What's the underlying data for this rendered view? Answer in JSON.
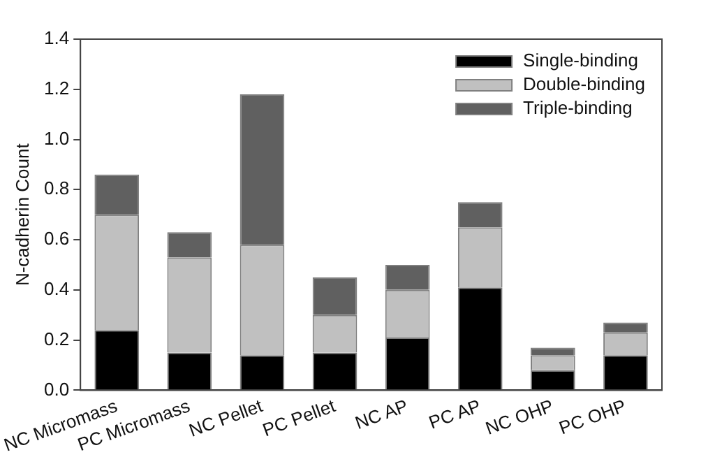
{
  "chart_data": {
    "type": "bar",
    "stacked": true,
    "ylabel": "N-cadherin Count",
    "categories": [
      "NC Micromass",
      "PC Micromass",
      "NC Pellet",
      "PC Pellet",
      "NC AP",
      "PC AP",
      "NC OHP",
      "PC OHP"
    ],
    "series": [
      {
        "name": "Single-binding",
        "color": "#000000",
        "values": [
          0.24,
          0.15,
          0.14,
          0.15,
          0.21,
          0.41,
          0.08,
          0.14
        ]
      },
      {
        "name": "Double-binding",
        "color": "#c0c0c0",
        "values": [
          0.46,
          0.38,
          0.44,
          0.15,
          0.19,
          0.24,
          0.06,
          0.09
        ]
      },
      {
        "name": "Triple-binding",
        "color": "#606060",
        "values": [
          0.16,
          0.1,
          0.6,
          0.15,
          0.1,
          0.1,
          0.03,
          0.04
        ]
      }
    ],
    "ylim": [
      0,
      1.4
    ],
    "yticks": [
      {
        "value": 0,
        "label": "0.0"
      },
      0.2,
      0.4,
      0.6,
      0.8,
      {
        "value": 1,
        "label": "1.0"
      },
      1.2,
      1.4
    ],
    "grid": false,
    "legend": "top right"
  }
}
